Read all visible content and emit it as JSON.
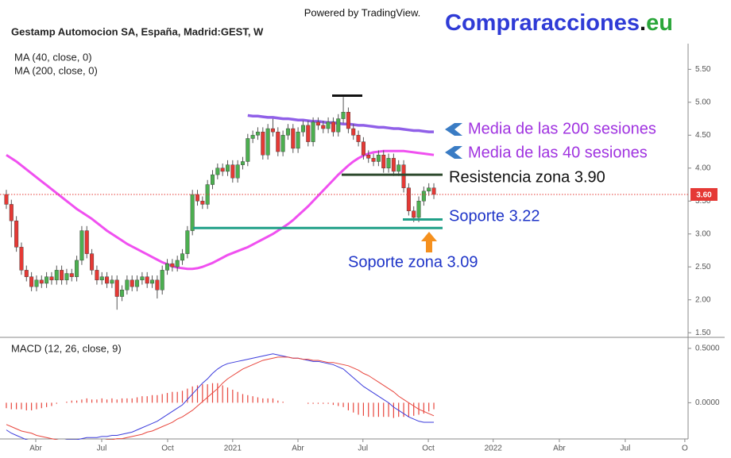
{
  "header": {
    "powered": "Powered by TradingView.",
    "brand": [
      "Compraracciones",
      ".",
      "eu"
    ]
  },
  "chart_data": [
    {
      "type": "candlestick",
      "title": "Gestamp Automocion SA, España, Madrid:GEST, W",
      "categories": [
        null,
        null,
        null,
        null,
        null,
        null,
        null,
        null,
        null,
        null,
        null,
        null,
        null,
        null,
        null,
        null,
        null,
        null,
        null,
        null,
        null,
        null,
        null,
        null,
        null,
        null,
        null,
        null,
        null,
        null,
        null,
        null,
        null,
        null,
        null,
        null,
        null,
        null,
        null,
        null,
        null,
        null,
        null,
        null,
        null,
        null,
        null,
        null,
        null,
        null,
        null,
        null,
        null,
        null,
        null,
        null,
        null,
        null,
        null,
        null,
        null,
        null,
        null,
        null,
        null,
        null,
        null,
        null,
        null,
        null,
        null,
        null,
        null,
        null,
        null,
        null,
        null,
        null,
        null,
        null,
        null,
        null,
        null,
        null,
        null,
        null
      ],
      "open": [
        3.6,
        3.45,
        3.2,
        2.8,
        2.45,
        2.35,
        2.2,
        2.3,
        2.25,
        2.35,
        2.3,
        2.45,
        2.3,
        2.4,
        2.35,
        2.6,
        3.05,
        2.7,
        2.45,
        2.3,
        2.35,
        2.25,
        2.3,
        2.05,
        2.15,
        2.3,
        2.2,
        2.3,
        2.35,
        2.25,
        2.3,
        2.15,
        2.45,
        2.55,
        2.5,
        2.6,
        2.7,
        3.05,
        3.6,
        3.5,
        3.45,
        3.75,
        3.9,
        4.0,
        3.95,
        4.05,
        3.85,
        4.05,
        4.1,
        4.45,
        4.5,
        4.55,
        4.2,
        4.6,
        4.55,
        4.25,
        4.5,
        4.6,
        4.3,
        4.55,
        4.65,
        4.4,
        4.7,
        4.65,
        4.6,
        4.7,
        4.55,
        4.75,
        4.85,
        4.6,
        4.5,
        4.4,
        4.2,
        4.15,
        4.1,
        4.2,
        4.0,
        4.15,
        3.95,
        4.05,
        3.7,
        3.35,
        3.25,
        3.5,
        3.65,
        3.7
      ],
      "high": [
        3.67,
        3.52,
        3.27,
        2.87,
        2.52,
        2.42,
        2.37,
        2.37,
        2.42,
        2.42,
        2.52,
        2.52,
        2.47,
        2.47,
        2.67,
        3.12,
        3.12,
        2.77,
        2.52,
        2.42,
        2.42,
        2.37,
        2.37,
        2.22,
        2.37,
        2.37,
        2.37,
        2.42,
        2.42,
        2.37,
        2.37,
        2.52,
        2.62,
        2.62,
        2.67,
        2.77,
        3.12,
        3.67,
        3.67,
        3.57,
        3.82,
        3.97,
        4.07,
        4.07,
        4.12,
        4.12,
        4.12,
        4.17,
        4.52,
        4.57,
        4.62,
        4.62,
        4.67,
        4.75,
        4.62,
        4.57,
        4.67,
        4.67,
        4.62,
        4.72,
        4.72,
        4.77,
        4.77,
        4.72,
        4.77,
        4.77,
        4.82,
        5.08,
        4.92,
        4.67,
        4.57,
        4.47,
        4.27,
        4.22,
        4.27,
        4.27,
        4.22,
        4.22,
        4.12,
        4.12,
        3.77,
        3.42,
        3.57,
        3.72,
        3.77,
        3.77
      ],
      "low": [
        3.38,
        2.95,
        2.73,
        2.38,
        2.28,
        2.13,
        2.13,
        2.18,
        2.18,
        2.23,
        2.23,
        2.23,
        2.23,
        2.28,
        2.28,
        2.53,
        2.63,
        2.38,
        2.23,
        2.23,
        2.18,
        2.18,
        1.85,
        1.98,
        2.08,
        2.13,
        2.13,
        2.23,
        2.18,
        2.18,
        2.02,
        2.08,
        2.38,
        2.43,
        2.43,
        2.53,
        2.63,
        2.98,
        3.43,
        3.38,
        3.38,
        3.68,
        3.83,
        3.88,
        3.88,
        3.78,
        3.78,
        3.98,
        4.03,
        4.38,
        4.43,
        4.13,
        4.13,
        4.48,
        4.18,
        4.18,
        4.43,
        4.23,
        4.23,
        4.48,
        4.33,
        4.33,
        4.58,
        4.53,
        4.53,
        4.48,
        4.48,
        4.68,
        4.53,
        4.43,
        4.33,
        4.13,
        4.08,
        4.03,
        4.03,
        3.93,
        3.93,
        3.88,
        3.88,
        3.63,
        3.28,
        3.18,
        3.18,
        3.43,
        3.58,
        3.53
      ],
      "close": [
        3.45,
        3.2,
        2.8,
        2.45,
        2.35,
        2.2,
        2.3,
        2.25,
        2.35,
        2.3,
        2.45,
        2.3,
        2.4,
        2.35,
        2.6,
        3.05,
        2.7,
        2.45,
        2.3,
        2.35,
        2.25,
        2.3,
        2.05,
        2.15,
        2.3,
        2.2,
        2.3,
        2.35,
        2.25,
        2.3,
        2.15,
        2.45,
        2.55,
        2.5,
        2.6,
        2.7,
        3.05,
        3.6,
        3.5,
        3.45,
        3.75,
        3.9,
        4.0,
        3.95,
        4.05,
        3.85,
        4.05,
        4.1,
        4.45,
        4.5,
        4.55,
        4.2,
        4.6,
        4.55,
        4.25,
        4.5,
        4.6,
        4.3,
        4.55,
        4.65,
        4.4,
        4.7,
        4.65,
        4.6,
        4.7,
        4.55,
        4.75,
        4.85,
        4.6,
        4.5,
        4.4,
        4.2,
        4.15,
        4.1,
        4.2,
        4.0,
        4.15,
        3.95,
        4.05,
        3.7,
        3.35,
        3.25,
        3.5,
        3.65,
        3.7,
        3.6
      ],
      "up_color": "#4caf50",
      "down_color": "#e53935",
      "series": [
        {
          "name": "MA (40, close, 0)",
          "color": "#f050f0",
          "values": [
            4.2,
            4.15,
            4.1,
            4.04,
            3.98,
            3.92,
            3.86,
            3.8,
            3.74,
            3.68,
            3.62,
            3.56,
            3.5,
            3.44,
            3.38,
            3.33,
            3.28,
            3.23,
            3.17,
            3.11,
            3.05,
            3.0,
            2.95,
            2.9,
            2.85,
            2.81,
            2.77,
            2.73,
            2.69,
            2.65,
            2.61,
            2.57,
            2.54,
            2.51,
            2.49,
            2.48,
            2.47,
            2.47,
            2.48,
            2.5,
            2.53,
            2.56,
            2.6,
            2.64,
            2.68,
            2.71,
            2.74,
            2.77,
            2.8,
            2.84,
            2.88,
            2.92,
            2.96,
            3.0,
            3.05,
            3.1,
            3.15,
            3.21,
            3.28,
            3.35,
            3.42,
            3.5,
            3.58,
            3.66,
            3.74,
            3.82,
            3.9,
            3.97,
            4.04,
            4.1,
            4.15,
            4.19,
            4.22,
            4.24,
            4.25,
            4.26,
            4.26,
            4.26,
            4.26,
            4.26,
            4.25,
            4.24,
            4.23,
            4.22,
            4.21,
            4.2
          ]
        },
        {
          "name": "MA (200, close, 0)",
          "color": "#9060e8",
          "values": [
            null,
            null,
            null,
            null,
            null,
            null,
            null,
            null,
            null,
            null,
            null,
            null,
            null,
            null,
            null,
            null,
            null,
            null,
            null,
            null,
            null,
            null,
            null,
            null,
            null,
            null,
            null,
            null,
            null,
            null,
            null,
            null,
            null,
            null,
            null,
            null,
            null,
            null,
            null,
            null,
            null,
            null,
            null,
            null,
            null,
            null,
            null,
            null,
            4.8,
            4.79,
            4.79,
            4.78,
            4.77,
            4.77,
            4.76,
            4.75,
            4.75,
            4.74,
            4.73,
            4.73,
            4.72,
            4.71,
            4.71,
            4.7,
            4.69,
            4.69,
            4.68,
            4.67,
            4.67,
            4.66,
            4.65,
            4.65,
            4.64,
            4.63,
            4.62,
            4.62,
            4.61,
            4.6,
            4.6,
            4.59,
            4.58,
            4.57,
            4.57,
            4.56,
            4.55,
            4.55
          ]
        }
      ],
      "xlim": [
        -1.26,
        135.55
      ],
      "ylim": [
        1.43,
        5.89
      ],
      "yticks": [
        {
          "value": 5.5,
          "label": "5.50"
        },
        {
          "value": 5.0,
          "label": "5.00"
        },
        {
          "value": 4.5,
          "label": "4.50"
        },
        {
          "value": 4.0,
          "label": "4.00"
        },
        {
          "value": 3.5,
          "label": "3.50"
        },
        {
          "value": 3.0,
          "label": "3.00"
        },
        {
          "value": 2.5,
          "label": "2.50"
        },
        {
          "value": 2.0,
          "label": "2.00"
        },
        {
          "value": 1.5,
          "label": "1.50"
        }
      ],
      "last_price": {
        "value": 3.6,
        "label": "3.60",
        "color": "#e53935"
      },
      "levels": [
        {
          "value": 5.1,
          "color": "#111111"
        },
        {
          "value": 3.9,
          "color": "#2d4a2d"
        },
        {
          "value": 3.22,
          "color": "#20a088"
        },
        {
          "value": 3.09,
          "color": "#20a088"
        }
      ],
      "annotations": [
        {
          "text": "Media de las 200 sesiones",
          "color": "#a033e0"
        },
        {
          "text": "Media de las 40 sesiones",
          "color": "#a033e0"
        },
        {
          "text": "Resistencia zona 3.90",
          "color": "#111111"
        },
        {
          "text": "Soporte 3.22",
          "color": "#1f35c8"
        },
        {
          "text": "Soporte zona 3.09",
          "color": "#1f35c8"
        }
      ]
    },
    {
      "type": "macd",
      "title": "MACD (12, 26, close, 9)",
      "categories": [
        null,
        null,
        null,
        null,
        null,
        null,
        null,
        null,
        null,
        null,
        null,
        null,
        null,
        null,
        null,
        null,
        null,
        null,
        null,
        null,
        null,
        null,
        null,
        null,
        null,
        null,
        null,
        null,
        null,
        null,
        null,
        null,
        null,
        null,
        null,
        null,
        null,
        null,
        null,
        null,
        null,
        null,
        null,
        null,
        null,
        null,
        null,
        null,
        null,
        null,
        null,
        null,
        null,
        null,
        null,
        null,
        null,
        null,
        null,
        null,
        null,
        null,
        null,
        null,
        null,
        null,
        null,
        null,
        null,
        null,
        null,
        null,
        null,
        null,
        null,
        null,
        null,
        null,
        null,
        null,
        null,
        null,
        null,
        null,
        null,
        null
      ],
      "series": [
        {
          "color": "#3b3bdc",
          "values": [
            -0.25,
            -0.28,
            -0.3,
            -0.32,
            -0.34,
            -0.35,
            -0.36,
            -0.36,
            -0.36,
            -0.36,
            -0.35,
            -0.35,
            -0.34,
            -0.34,
            -0.34,
            -0.33,
            -0.32,
            -0.32,
            -0.32,
            -0.31,
            -0.31,
            -0.3,
            -0.3,
            -0.29,
            -0.28,
            -0.27,
            -0.25,
            -0.23,
            -0.21,
            -0.19,
            -0.17,
            -0.14,
            -0.11,
            -0.08,
            -0.05,
            -0.02,
            0.03,
            0.08,
            0.13,
            0.18,
            0.22,
            0.27,
            0.31,
            0.34,
            0.36,
            0.37,
            0.38,
            0.39,
            0.4,
            0.41,
            0.42,
            0.43,
            0.44,
            0.45,
            0.44,
            0.43,
            0.42,
            0.41,
            0.41,
            0.4,
            0.39,
            0.38,
            0.38,
            0.37,
            0.36,
            0.35,
            0.33,
            0.31,
            0.27,
            0.23,
            0.19,
            0.15,
            0.12,
            0.09,
            0.06,
            0.03,
            0.0,
            -0.04,
            -0.07,
            -0.1,
            -0.13,
            -0.15,
            -0.17,
            -0.18,
            -0.18,
            -0.18
          ]
        },
        {
          "color": "#e8453c",
          "values": [
            -0.2,
            -0.22,
            -0.24,
            -0.26,
            -0.27,
            -0.28,
            -0.3,
            -0.31,
            -0.32,
            -0.33,
            -0.34,
            -0.35,
            -0.35,
            -0.36,
            -0.36,
            -0.36,
            -0.36,
            -0.35,
            -0.35,
            -0.35,
            -0.34,
            -0.34,
            -0.33,
            -0.33,
            -0.32,
            -0.31,
            -0.3,
            -0.29,
            -0.27,
            -0.26,
            -0.24,
            -0.22,
            -0.2,
            -0.18,
            -0.15,
            -0.13,
            -0.1,
            -0.07,
            -0.03,
            0.01,
            0.05,
            0.09,
            0.13,
            0.18,
            0.22,
            0.25,
            0.28,
            0.31,
            0.33,
            0.35,
            0.37,
            0.39,
            0.4,
            0.41,
            0.42,
            0.42,
            0.42,
            0.41,
            0.41,
            0.4,
            0.4,
            0.39,
            0.39,
            0.38,
            0.37,
            0.37,
            0.36,
            0.35,
            0.34,
            0.32,
            0.3,
            0.27,
            0.25,
            0.22,
            0.19,
            0.16,
            0.13,
            0.1,
            0.06,
            0.03,
            0.0,
            -0.03,
            -0.06,
            -0.08,
            -0.1,
            -0.12
          ]
        }
      ],
      "histogram": {
        "color": "#e8453c",
        "values": [
          -0.05,
          -0.06,
          -0.06,
          -0.06,
          -0.07,
          -0.07,
          -0.06,
          -0.05,
          -0.04,
          -0.03,
          -0.01,
          0.0,
          0.01,
          0.02,
          0.02,
          0.03,
          0.04,
          0.03,
          0.03,
          0.04,
          0.03,
          0.04,
          0.03,
          0.04,
          0.04,
          0.04,
          0.05,
          0.06,
          0.06,
          0.07,
          0.07,
          0.08,
          0.09,
          0.1,
          0.1,
          0.11,
          0.13,
          0.15,
          0.16,
          0.17,
          0.17,
          0.18,
          0.18,
          0.16,
          0.14,
          0.12,
          0.1,
          0.08,
          0.07,
          0.06,
          0.05,
          0.04,
          0.04,
          0.04,
          0.02,
          0.01,
          0.0,
          0.0,
          0.0,
          0.0,
          -0.01,
          -0.01,
          -0.01,
          -0.01,
          -0.01,
          -0.02,
          -0.03,
          -0.04,
          -0.07,
          -0.09,
          -0.11,
          -0.12,
          -0.13,
          -0.13,
          -0.13,
          -0.13,
          -0.13,
          -0.14,
          -0.13,
          -0.13,
          -0.13,
          -0.12,
          -0.11,
          -0.1,
          -0.08,
          -0.06
        ]
      },
      "xlim": [
        -1.26,
        135.55
      ],
      "ylim": [
        -0.333,
        0.594
      ],
      "yticks": [
        {
          "value": 0.5,
          "label": "0.5000"
        },
        {
          "value": 0.0,
          "label": "0.0000"
        }
      ],
      "xticks": [
        {
          "value": 5.85,
          "label": "Abr"
        },
        {
          "value": 18.96,
          "label": "Jul"
        },
        {
          "value": 32.07,
          "label": "Oct"
        },
        {
          "value": 45.0,
          "label": "2021"
        },
        {
          "value": 57.98,
          "label": "Abr"
        },
        {
          "value": 70.9,
          "label": "Jul"
        },
        {
          "value": 83.9,
          "label": "Oct"
        },
        {
          "value": 96.8,
          "label": "2022"
        },
        {
          "value": 109.95,
          "label": "Abr"
        },
        {
          "value": 123.06,
          "label": "Jul"
        },
        {
          "value": 134.9,
          "label": "O"
        }
      ]
    }
  ]
}
